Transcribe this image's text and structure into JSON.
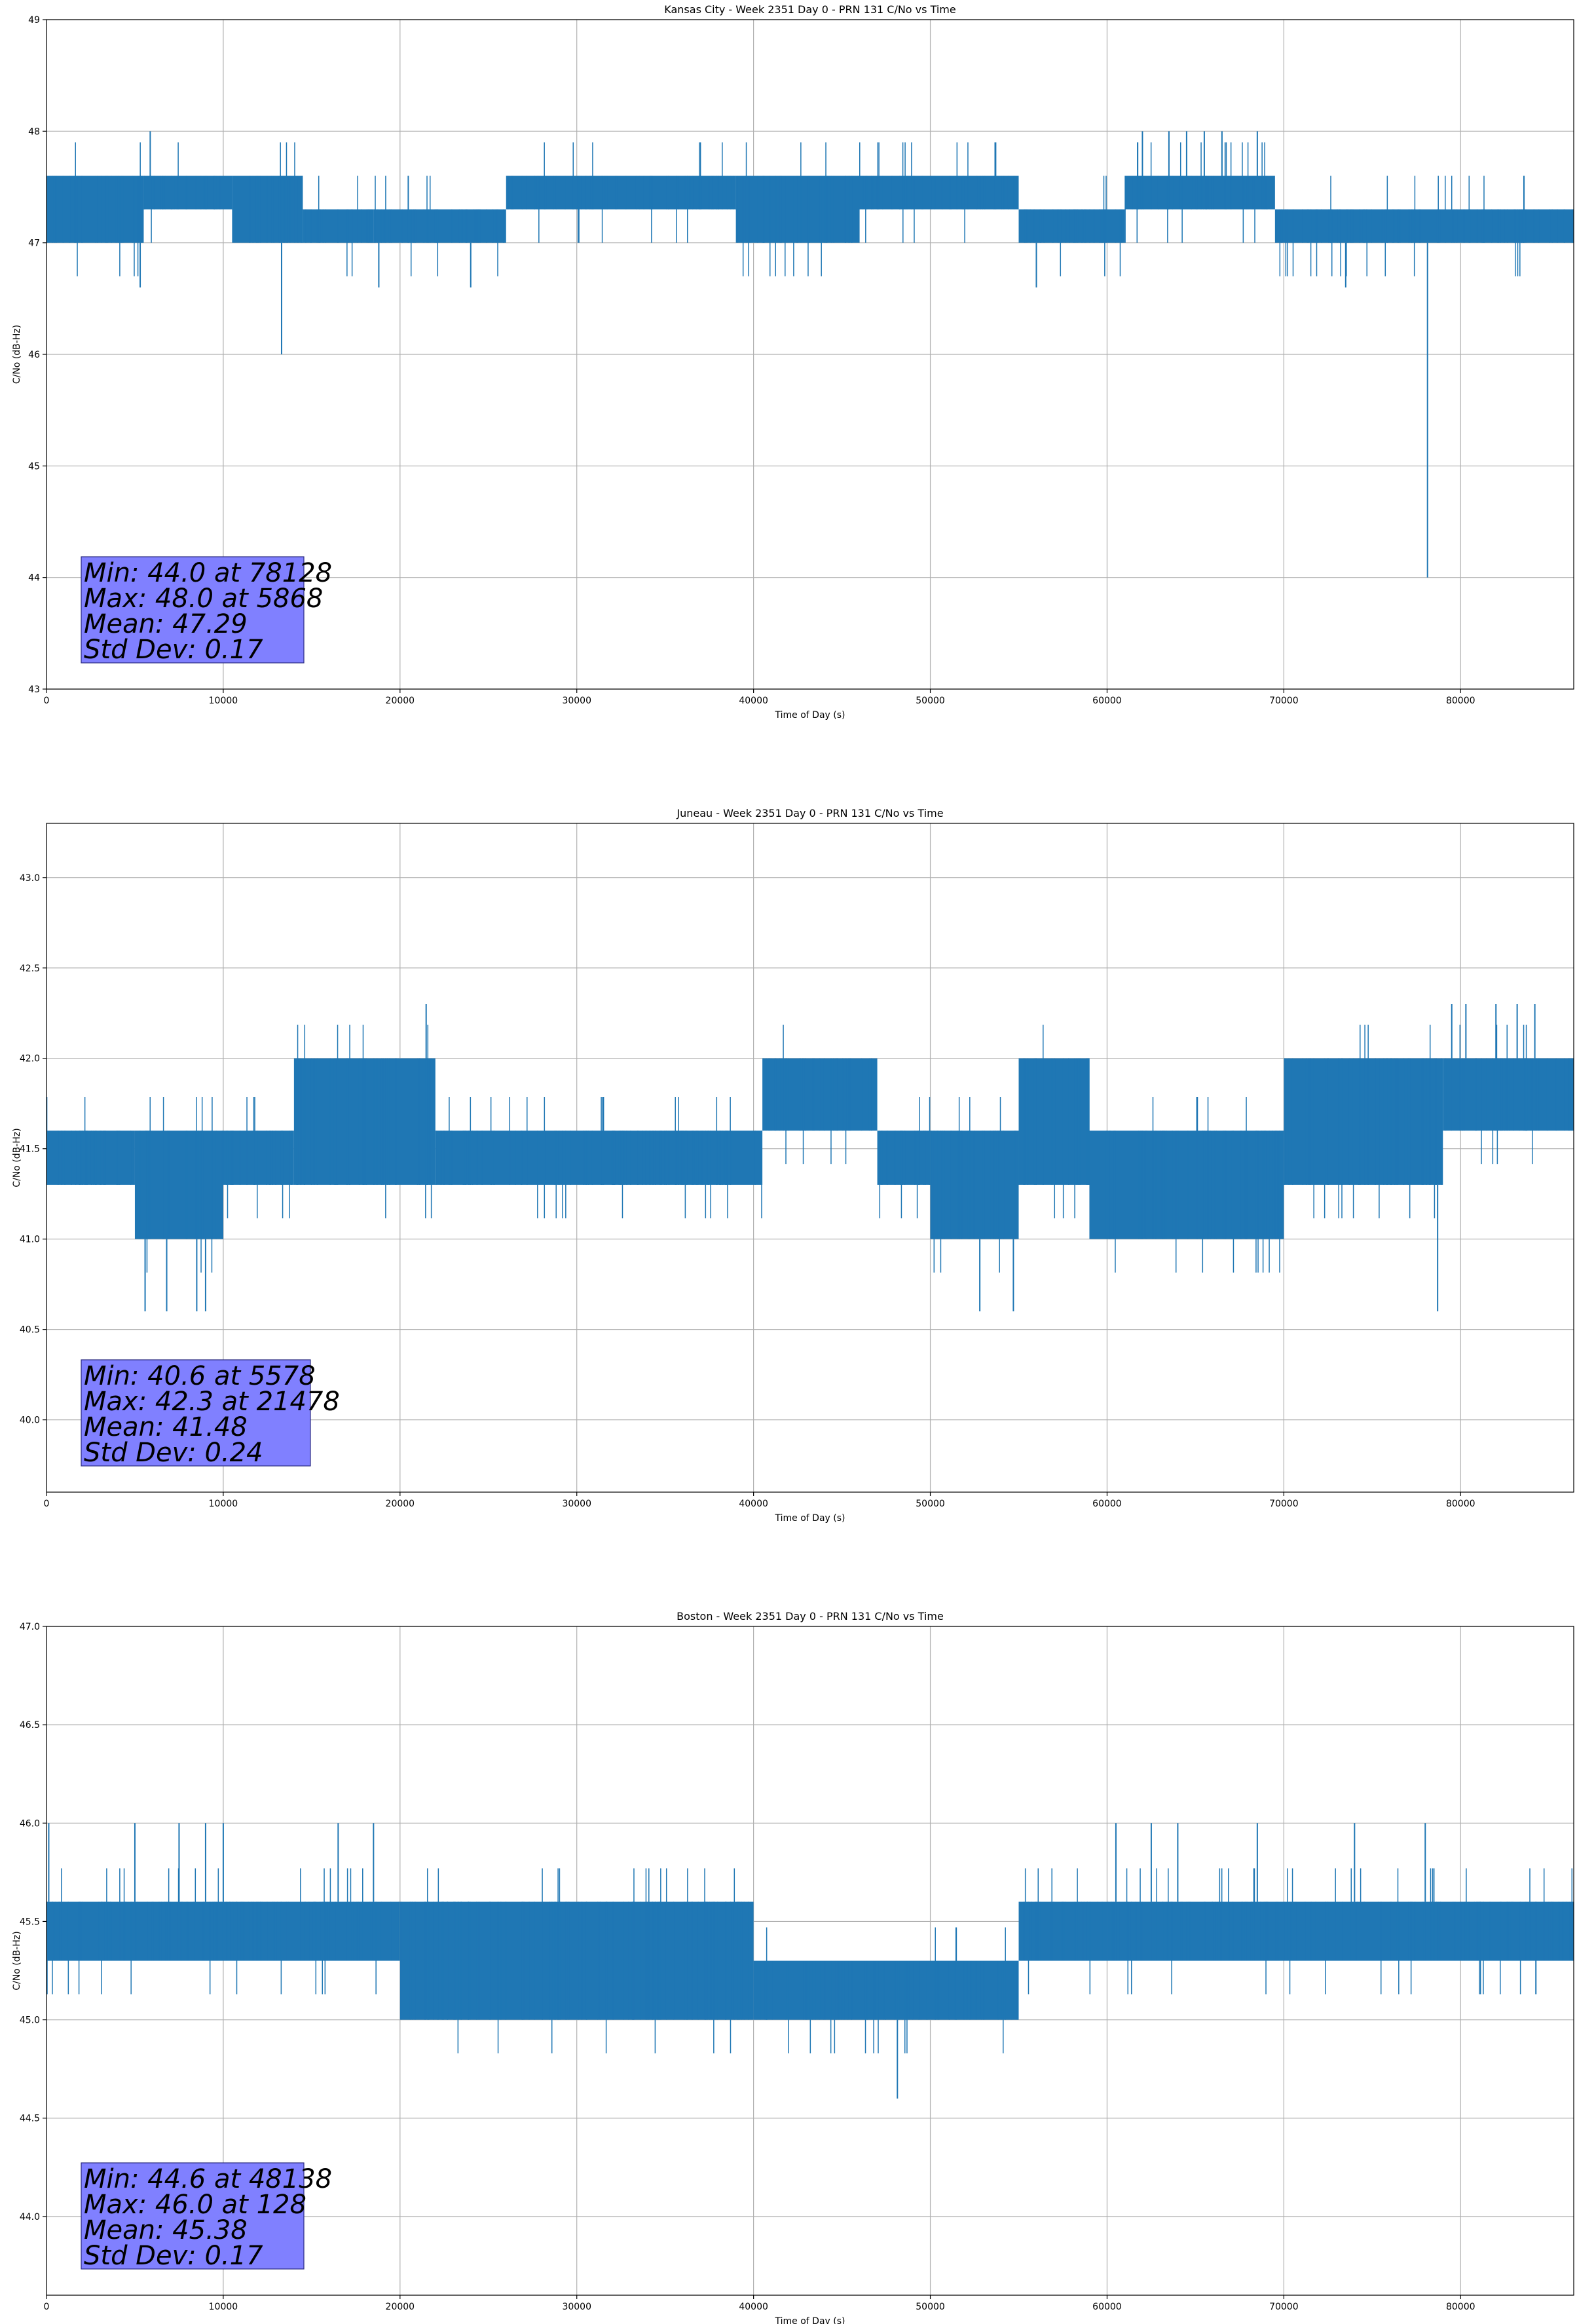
{
  "chart_data": [
    {
      "type": "line",
      "title": "Kansas City - Week 2351 Day 0 - PRN 131 C/No vs Time",
      "xlabel": "Time of Day (s)",
      "ylabel": "C/No (dB-Hz)",
      "xlim": [
        0,
        86400
      ],
      "ylim": [
        43,
        49
      ],
      "xticks": [
        0,
        10000,
        20000,
        30000,
        40000,
        50000,
        60000,
        70000,
        80000
      ],
      "yticks": [
        43,
        44,
        45,
        46,
        47,
        48,
        49
      ],
      "ytick_labels": [
        "43",
        "44",
        "45",
        "46",
        "47",
        "48",
        "49"
      ],
      "grid": true,
      "color": "#1f77b4",
      "bands": [
        [
          0,
          2000,
          47.0,
          47.6
        ],
        [
          2000,
          5500,
          47.0,
          47.6
        ],
        [
          5500,
          10500,
          47.3,
          47.6
        ],
        [
          10500,
          14500,
          47.0,
          47.6
        ],
        [
          14500,
          18500,
          47.0,
          47.3
        ],
        [
          18500,
          26000,
          47.0,
          47.3
        ],
        [
          26000,
          39000,
          47.3,
          47.6
        ],
        [
          39000,
          46000,
          47.0,
          47.6
        ],
        [
          46000,
          55000,
          47.3,
          47.6
        ],
        [
          55000,
          61000,
          47.0,
          47.3
        ],
        [
          61000,
          69500,
          47.3,
          47.6
        ],
        [
          69500,
          86400,
          47.0,
          47.3
        ]
      ],
      "spikes": [
        [
          5868,
          48.0
        ],
        [
          5300,
          46.6
        ],
        [
          13300,
          46.0
        ],
        [
          18800,
          46.6
        ],
        [
          24000,
          46.6
        ],
        [
          56000,
          46.6
        ],
        [
          62000,
          48.0
        ],
        [
          63500,
          48.0
        ],
        [
          64500,
          48.0
        ],
        [
          65500,
          48.0
        ],
        [
          66500,
          48.0
        ],
        [
          68500,
          48.0
        ],
        [
          73500,
          46.6
        ],
        [
          78128,
          44.0
        ]
      ],
      "stats": [
        "Min: 44.0 at 78128",
        "Max: 48.0 at 5868",
        "Mean: 47.29",
        "Std Dev: 0.17"
      ]
    },
    {
      "type": "line",
      "title": "Juneau - Week 2351 Day 0 - PRN 131 C/No vs Time",
      "xlabel": "Time of Day (s)",
      "ylabel": "C/No (dB-Hz)",
      "xlim": [
        0,
        86400
      ],
      "ylim": [
        39.6,
        43.3
      ],
      "xticks": [
        0,
        10000,
        20000,
        30000,
        40000,
        50000,
        60000,
        70000,
        80000
      ],
      "yticks": [
        40.0,
        40.5,
        41.0,
        41.5,
        42.0,
        42.5,
        43.0
      ],
      "ytick_labels": [
        "40.0",
        "40.5",
        "41.0",
        "41.5",
        "42.0",
        "42.5",
        "43.0"
      ],
      "grid": true,
      "color": "#1f77b4",
      "bands": [
        [
          0,
          5000,
          41.3,
          41.6
        ],
        [
          5000,
          10000,
          41.0,
          41.6
        ],
        [
          10000,
          14000,
          41.3,
          41.6
        ],
        [
          14000,
          22000,
          41.3,
          42.0
        ],
        [
          22000,
          40500,
          41.3,
          41.6
        ],
        [
          40500,
          47000,
          41.6,
          42.0
        ],
        [
          47000,
          50000,
          41.3,
          41.6
        ],
        [
          50000,
          55000,
          41.0,
          41.6
        ],
        [
          55000,
          59000,
          41.3,
          42.0
        ],
        [
          59000,
          70000,
          41.0,
          41.6
        ],
        [
          70000,
          79000,
          41.3,
          42.0
        ],
        [
          79000,
          86400,
          41.6,
          42.0
        ]
      ],
      "spikes": [
        [
          5578,
          40.6
        ],
        [
          6800,
          40.6
        ],
        [
          8500,
          40.6
        ],
        [
          9000,
          40.6
        ],
        [
          21478,
          42.3
        ],
        [
          52800,
          40.6
        ],
        [
          54700,
          40.6
        ],
        [
          78700,
          40.6
        ],
        [
          79500,
          42.3
        ],
        [
          80300,
          42.3
        ],
        [
          82000,
          42.3
        ],
        [
          83200,
          42.3
        ],
        [
          84200,
          42.3
        ]
      ],
      "stats": [
        "Min: 40.6 at 5578",
        "Max: 42.3 at 21478",
        "Mean: 41.48",
        "Std Dev: 0.24"
      ]
    },
    {
      "type": "line",
      "title": "Boston - Week 2351 Day 0 - PRN 131 C/No vs Time",
      "xlabel": "Time of Day (s)",
      "ylabel": "C/No (dB-Hz)",
      "xlim": [
        0,
        86400
      ],
      "ylim": [
        43.6,
        47.0
      ],
      "xticks": [
        0,
        10000,
        20000,
        30000,
        40000,
        50000,
        60000,
        70000,
        80000
      ],
      "yticks": [
        44.0,
        44.5,
        45.0,
        45.5,
        46.0,
        46.5,
        47.0
      ],
      "ytick_labels": [
        "44.0",
        "44.5",
        "45.0",
        "45.5",
        "46.0",
        "46.5",
        "47.0"
      ],
      "grid": true,
      "color": "#1f77b4",
      "bands": [
        [
          0,
          20000,
          45.3,
          45.6
        ],
        [
          20000,
          40000,
          45.0,
          45.6
        ],
        [
          40000,
          55000,
          45.0,
          45.3
        ],
        [
          55000,
          60000,
          45.3,
          45.6
        ],
        [
          60000,
          86400,
          45.3,
          45.6
        ]
      ],
      "spikes": [
        [
          128,
          46.0
        ],
        [
          5000,
          46.0
        ],
        [
          7500,
          46.0
        ],
        [
          9000,
          46.0
        ],
        [
          10000,
          46.0
        ],
        [
          16500,
          46.0
        ],
        [
          18500,
          46.0
        ],
        [
          48138,
          44.6
        ],
        [
          60500,
          46.0
        ],
        [
          62500,
          46.0
        ],
        [
          64000,
          46.0
        ],
        [
          68500,
          46.0
        ],
        [
          74000,
          46.0
        ],
        [
          78000,
          46.0
        ]
      ],
      "stats": [
        "Min: 44.6 at 48138",
        "Max: 46.0 at 128",
        "Mean: 45.38",
        "Std Dev: 0.17"
      ]
    }
  ]
}
